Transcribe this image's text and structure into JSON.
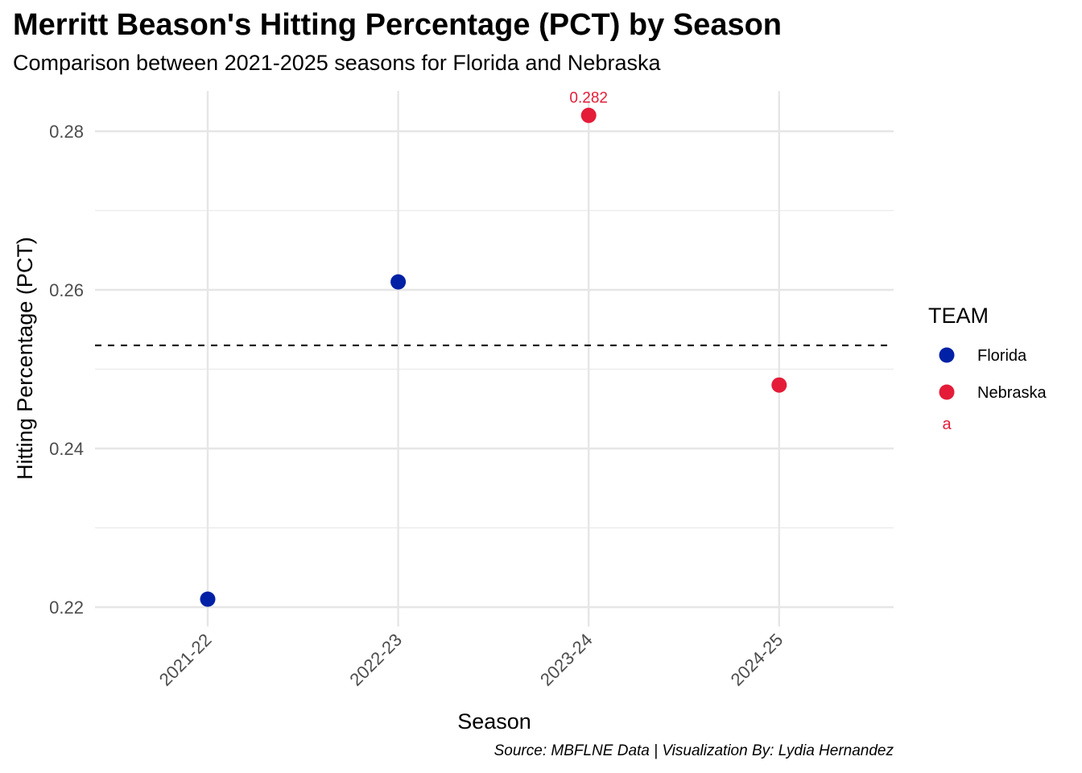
{
  "chart_data": {
    "type": "scatter",
    "title": "Merritt Beason's Hitting Percentage (PCT) by Season",
    "subtitle": "Comparison between 2021-2025 seasons for Florida and Nebraska",
    "caption": "Source: MBFLNE Data | Visualization By: Lydia Hernandez",
    "xlabel": "Season",
    "ylabel": "Hitting Percentage (PCT)",
    "categories": [
      "2021-22",
      "2022-23",
      "2023-24",
      "2024-25"
    ],
    "ylim": [
      0.219,
      0.285
    ],
    "yticks": [
      0.22,
      0.24,
      0.26,
      0.28
    ],
    "yticks_labels": [
      "0.22",
      "0.24",
      "0.26",
      "0.28"
    ],
    "reference_line": {
      "y": 0.253,
      "style": "dashed"
    },
    "grid": true,
    "legend": {
      "title": "TEAM",
      "position": "right",
      "stray_glyph": "a",
      "items": [
        {
          "name": "Florida",
          "color": "#0021A5"
        },
        {
          "name": "Nebraska",
          "color": "#E41C38"
        }
      ]
    },
    "series": [
      {
        "name": "Florida",
        "color": "#0021A5",
        "points": [
          {
            "x": "2021-22",
            "y": 0.221
          },
          {
            "x": "2022-23",
            "y": 0.261
          }
        ]
      },
      {
        "name": "Nebraska",
        "color": "#E41C38",
        "points": [
          {
            "x": "2023-24",
            "y": 0.282,
            "label": "0.282"
          },
          {
            "x": "2024-25",
            "y": 0.248
          }
        ]
      }
    ]
  }
}
